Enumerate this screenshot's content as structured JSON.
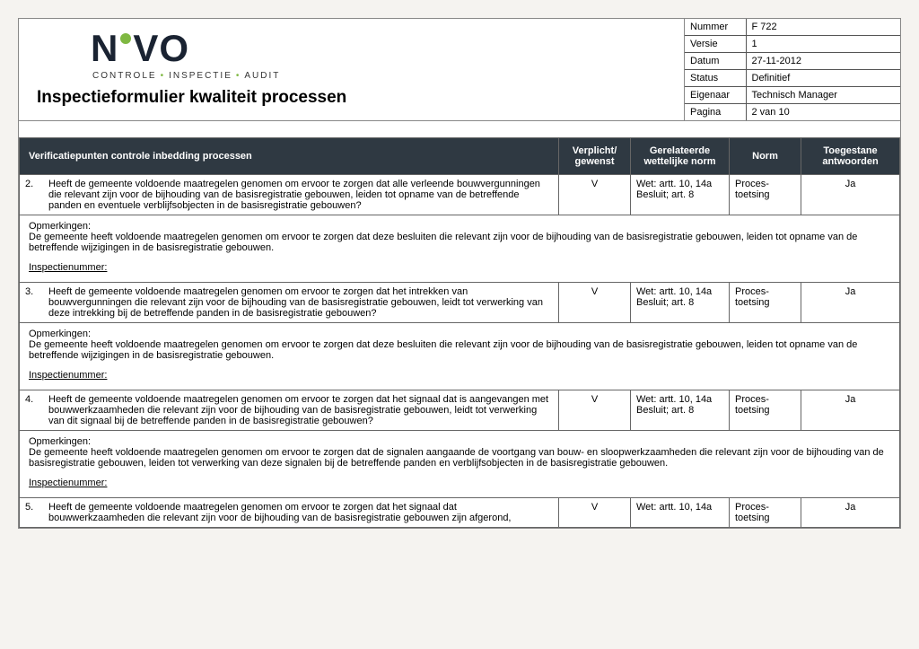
{
  "colors": {
    "page_bg": "#f5f3f0",
    "paper_bg": "#ffffff",
    "border": "#666666",
    "header_bg": "#2f3942",
    "header_fg": "#ffffff",
    "logo_color": "#1a2332",
    "accent": "#7fb842"
  },
  "logo": {
    "text_left": "N",
    "text_mid": "VO",
    "tagline_a": "CONTROLE",
    "tagline_b": "INSPECTIE",
    "tagline_c": "AUDIT"
  },
  "form_title": "Inspectieformulier kwaliteit processen",
  "meta": {
    "labels": {
      "nummer": "Nummer",
      "versie": "Versie",
      "datum": "Datum",
      "status": "Status",
      "eigenaar": "Eigenaar",
      "pagina": "Pagina"
    },
    "nummer": "F 722",
    "versie": "1",
    "datum": "27-11-2012",
    "status": "Definitief",
    "eigenaar": "Technisch Manager",
    "pagina": "2 van 10"
  },
  "table": {
    "headers": {
      "question": "Verificatiepunten controle inbedding processen",
      "verplicht": "Verplicht/ gewenst",
      "wettelijk": "Gerelateerde wettelijke norm",
      "norm": "Norm",
      "antwoord": "Toegestane antwoorden"
    },
    "rows": [
      {
        "num": "2.",
        "q": "Heeft de gemeente voldoende maatregelen genomen om ervoor te zorgen dat alle verleende bouwvergunningen die relevant zijn voor de bijhouding van de basisregistratie gebouwen, leiden tot opname van de betreffende panden en eventuele verblijfsobjecten in de basisregistratie gebouwen?",
        "v": "V",
        "w": "Wet: artt. 10, 14a\nBesluit; art. 8",
        "n": "Proces-toetsing",
        "a": "Ja",
        "opm_label": "Opmerkingen:",
        "opm": "De gemeente heeft voldoende maatregelen genomen om ervoor te zorgen dat deze besluiten die relevant zijn voor de bijhouding van de basisregistratie gebouwen, leiden tot opname van de betreffende wijzigingen in de basisregistratie gebouwen.",
        "ins": "Inspectienummer:"
      },
      {
        "num": "3.",
        "q": "Heeft de gemeente voldoende maatregelen genomen om ervoor te zorgen dat het intrekken van bouwvergunningen die relevant zijn voor de bijhouding van de basisregistratie gebouwen, leidt tot verwerking van deze intrekking bij de betreffende panden in de basisregistratie gebouwen?",
        "v": "V",
        "w": "Wet: artt. 10, 14a\nBesluit; art. 8",
        "n": "Proces-toetsing",
        "a": "Ja",
        "opm_label": "Opmerkingen:",
        "opm": "De gemeente heeft voldoende maatregelen genomen om ervoor te zorgen dat deze besluiten die relevant zijn voor de bijhouding van de basisregistratie gebouwen, leiden tot opname van de betreffende wijzigingen in de basisregistratie gebouwen.",
        "ins": "Inspectienummer:"
      },
      {
        "num": "4.",
        "q": "Heeft de gemeente voldoende maatregelen genomen om ervoor te zorgen dat het signaal dat is aangevangen met bouwwerkzaamheden die relevant zijn voor de bijhouding van de basisregistratie gebouwen, leidt tot verwerking van dit signaal bij de betreffende panden in de basisregistratie gebouwen?",
        "v": "V",
        "w": "Wet: artt. 10, 14a\nBesluit; art. 8",
        "n": "Proces-toetsing",
        "a": "Ja",
        "opm_label": "Opmerkingen:",
        "opm": "De gemeente heeft voldoende maatregelen genomen om ervoor te zorgen dat de signalen aangaande de voortgang van bouw- en sloopwerkzaamheden die relevant zijn voor de bijhouding van de basisregistratie gebouwen, leiden tot verwerking van deze signalen bij de betreffende panden en verblijfsobjecten in de basisregistratie gebouwen.",
        "ins": "Inspectienummer:"
      },
      {
        "num": "5.",
        "q": "Heeft de gemeente voldoende maatregelen genomen om ervoor te zorgen dat het signaal dat bouwwerkzaamheden die relevant zijn voor de bijhouding van de basisregistratie gebouwen zijn afgerond,",
        "v": "V",
        "w": "Wet: artt. 10, 14a",
        "n": "Proces-toetsing",
        "a": "Ja",
        "opm_label": "",
        "opm": "",
        "ins": ""
      }
    ]
  }
}
